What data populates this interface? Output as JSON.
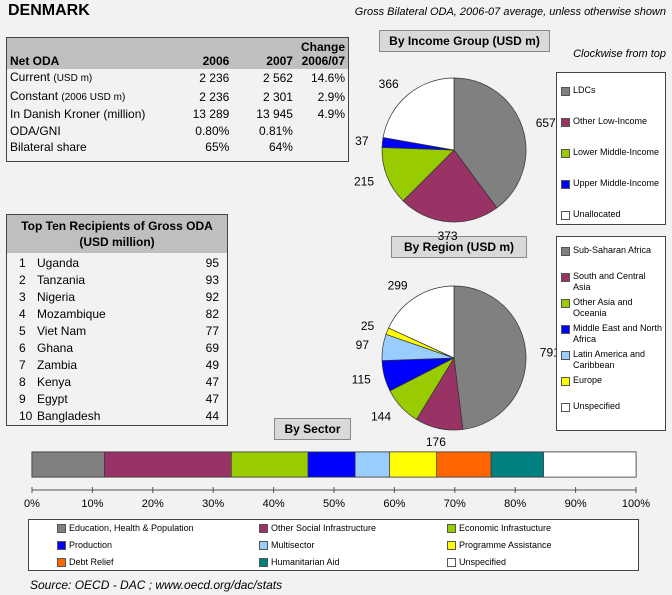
{
  "header": {
    "country": "DENMARK",
    "subtitle": "Gross Bilateral ODA, 2006-07 average, unless otherwise shown",
    "clockwise_note": "Clockwise from top"
  },
  "net_oda": {
    "header_label": "Net ODA",
    "col_2006": "2006",
    "col_2007": "2007",
    "col_change_line1": "Change",
    "col_change_line2": "2006/07",
    "rows": [
      {
        "label": "Current",
        "unit": "(USD m)",
        "v2006": "2 236",
        "v2007": "2 562",
        "change": "14.6%"
      },
      {
        "label": "Constant",
        "unit": "(2006 USD m)",
        "v2006": "2 236",
        "v2007": "2 301",
        "change": "2.9%"
      },
      {
        "label": "In Danish Kroner (million)",
        "unit": "",
        "v2006": "13 289",
        "v2007": "13 945",
        "change": "4.9%"
      },
      {
        "label": "ODA/GNI",
        "unit": "",
        "v2006": "0.80%",
        "v2007": "0.81%",
        "change": ""
      },
      {
        "label": "Bilateral share",
        "unit": "",
        "v2006": "65%",
        "v2007": "64%",
        "change": ""
      }
    ]
  },
  "top_recipients": {
    "title_line1": "Top Ten Recipients of Gross ODA",
    "title_line2": "(USD million)",
    "items": [
      {
        "rank": "1",
        "name": "Uganda",
        "value": "95"
      },
      {
        "rank": "2",
        "name": "Tanzania",
        "value": "93"
      },
      {
        "rank": "3",
        "name": "Nigeria",
        "value": "92"
      },
      {
        "rank": "4",
        "name": "Mozambique",
        "value": "82"
      },
      {
        "rank": "5",
        "name": "Viet Nam",
        "value": "77"
      },
      {
        "rank": "6",
        "name": "Ghana",
        "value": "69"
      },
      {
        "rank": "7",
        "name": "Zambia",
        "value": "49"
      },
      {
        "rank": "8",
        "name": "Kenya",
        "value": "47"
      },
      {
        "rank": "9",
        "name": "Egypt",
        "value": "47"
      },
      {
        "rank": "10",
        "name": "Bangladesh",
        "value": "44"
      }
    ]
  },
  "chart_data": [
    {
      "type": "pie",
      "title": "By Income Group (USD m)",
      "direction": "clockwise from top",
      "slices": [
        {
          "label": "LDCs",
          "value": 657,
          "color": "#808080"
        },
        {
          "label": "Other Low-Income",
          "value": 373,
          "color": "#993366"
        },
        {
          "label": "Lower Middle-Income",
          "value": 215,
          "color": "#99cc00"
        },
        {
          "label": "Upper Middle-Income",
          "value": 37,
          "color": "#0000ff"
        },
        {
          "label": "Unallocated",
          "value": 366,
          "color": "#ffffff"
        }
      ]
    },
    {
      "type": "pie",
      "title": "By Region (USD m)",
      "direction": "clockwise from top",
      "slices": [
        {
          "label": "Sub-Saharan Africa",
          "value": 791,
          "color": "#808080"
        },
        {
          "label": "South and Central Asia",
          "value": 176,
          "color": "#993366"
        },
        {
          "label": "Other Asia and Oceania",
          "value": 144,
          "color": "#99cc00"
        },
        {
          "label": "Middle East and North Africa",
          "value": 115,
          "color": "#0000ff"
        },
        {
          "label": "Latin America and Caribbean",
          "value": 97,
          "color": "#99ccff"
        },
        {
          "label": "Europe",
          "value": 25,
          "color": "#ffff00"
        },
        {
          "label": "Unspecified",
          "value": 299,
          "color": "#ffffff"
        }
      ]
    },
    {
      "type": "bar",
      "orientation": "horizontal-stacked-100",
      "title": "By Sector",
      "xlim": [
        0,
        100
      ],
      "x_ticks": [
        "0%",
        "10%",
        "20%",
        "30%",
        "40%",
        "50%",
        "60%",
        "70%",
        "80%",
        "90%",
        "100%"
      ],
      "series": [
        {
          "name": "Education, Health & Population",
          "value": 12,
          "color": "#808080"
        },
        {
          "name": "Other Social Infrastructure",
          "value": 21,
          "color": "#993366"
        },
        {
          "name": "Economic Infrastucture",
          "value": 12.7,
          "color": "#99cc00"
        },
        {
          "name": "Production",
          "value": 7.8,
          "color": "#0000ff"
        },
        {
          "name": "Multisector",
          "value": 5.7,
          "color": "#99ccff"
        },
        {
          "name": "Programme Assistance",
          "value": 7.8,
          "color": "#ffff00"
        },
        {
          "name": "Debt Relief",
          "value": 9,
          "color": "#ff6600"
        },
        {
          "name": "Humanitarian Aid",
          "value": 8.7,
          "color": "#008080"
        },
        {
          "name": "Unspecified",
          "value": 15.3,
          "color": "#ffffff"
        }
      ]
    }
  ],
  "footer": {
    "source": "Source:  OECD - DAC ; www.oecd.org/dac/stats"
  }
}
